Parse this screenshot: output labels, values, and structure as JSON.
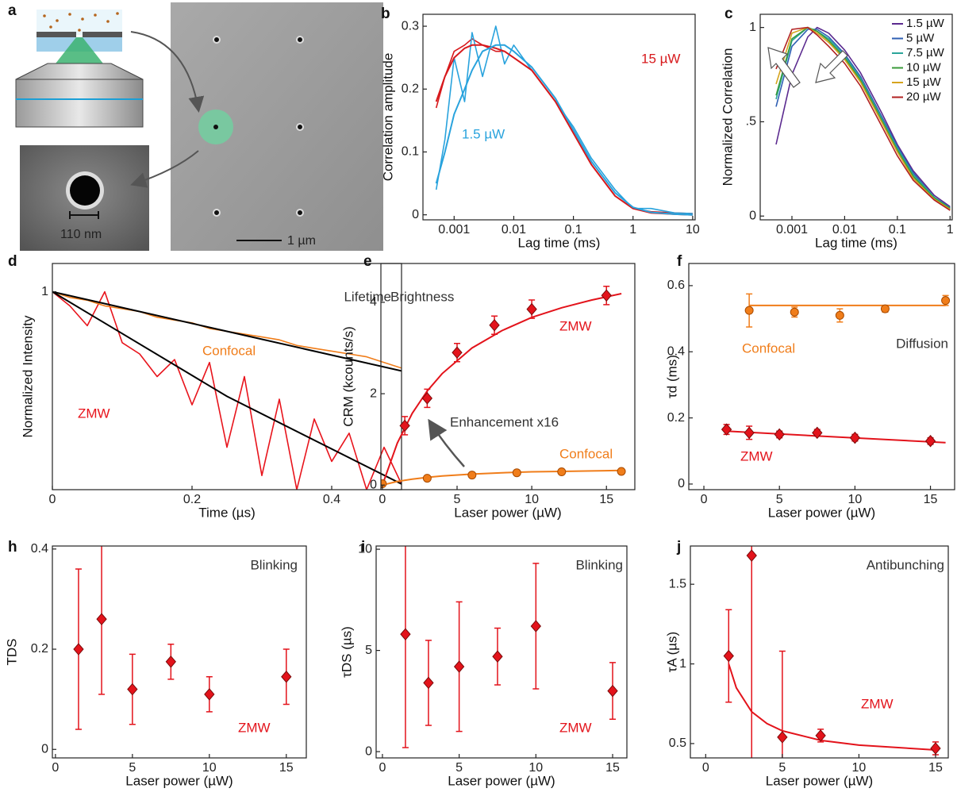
{
  "panel_a": {
    "label": "a",
    "inset_scale": "110 nm",
    "scale_bar": "1 µm"
  },
  "chart_data": [
    {
      "type": "line",
      "label": "b",
      "xlabel": "Lag time (ms)",
      "ylabel": "Correlation amplitude",
      "xlog": true,
      "xlim": [
        0.0003,
        11
      ],
      "xticks": [
        0.001,
        0.01,
        0.1,
        1,
        10
      ],
      "ylim": [
        -0.008,
        0.319
      ],
      "yticks": [
        0,
        0.1,
        0.2,
        0.3
      ],
      "x": [
        0.0005,
        0.0007,
        0.001,
        0.0015,
        0.002,
        0.003,
        0.005,
        0.007,
        0.01,
        0.02,
        0.05,
        0.1,
        0.2,
        0.5,
        1,
        2,
        5,
        10
      ],
      "series": [
        {
          "name": "15 µW",
          "color": "#d7191c",
          "values": [
            0.17,
            0.22,
            0.26,
            0.27,
            0.28,
            0.27,
            0.26,
            0.26,
            0.25,
            0.23,
            0.18,
            0.13,
            0.08,
            0.03,
            0.01,
            0.005,
            0.003,
            0.002
          ],
          "fit": [
            0.18,
            0.22,
            0.25,
            0.265,
            0.27,
            0.27,
            0.265,
            0.26,
            0.25,
            0.23,
            0.18,
            0.13,
            0.08,
            0.03,
            0.01,
            0.003,
            0.001,
            0
          ]
        },
        {
          "name": "1.5 µW",
          "color": "#29a3dd",
          "values": [
            0.04,
            0.12,
            0.25,
            0.18,
            0.29,
            0.22,
            0.3,
            0.24,
            0.27,
            0.23,
            0.18,
            0.14,
            0.09,
            0.04,
            0.01,
            0.01,
            0.003,
            0.002
          ],
          "fit": [
            0.05,
            0.1,
            0.16,
            0.2,
            0.23,
            0.26,
            0.27,
            0.27,
            0.26,
            0.235,
            0.185,
            0.135,
            0.085,
            0.035,
            0.012,
            0.004,
            0.001,
            0
          ]
        }
      ]
    },
    {
      "type": "line",
      "label": "c",
      "xlabel": "Lag time (ms)",
      "ylabel": "Normalized Correlation",
      "xlog": true,
      "legend": "upper right",
      "xlim": [
        0.00025,
        1.1
      ],
      "xticks": [
        0.001,
        0.01,
        0.1,
        1
      ],
      "ylim": [
        -0.02,
        1.07
      ],
      "yticks": [
        0,
        {
          "value": 0.5,
          "label": ".5"
        },
        1
      ],
      "x": [
        0.0005,
        0.001,
        0.002,
        0.003,
        0.005,
        0.01,
        0.02,
        0.05,
        0.1,
        0.2,
        0.5,
        1
      ],
      "series": [
        {
          "name": "1.5 µW",
          "color": "#5b2a8f",
          "values": [
            0.38,
            0.75,
            0.95,
            1.0,
            0.97,
            0.88,
            0.76,
            0.55,
            0.38,
            0.24,
            0.11,
            0.05
          ]
        },
        {
          "name": "5 µW",
          "color": "#2f5fb3",
          "values": [
            0.58,
            0.9,
            0.99,
            0.99,
            0.95,
            0.86,
            0.74,
            0.53,
            0.37,
            0.23,
            0.1,
            0.045
          ]
        },
        {
          "name": "7.5 µW",
          "color": "#2aa59a",
          "values": [
            0.62,
            0.93,
            1.0,
            0.98,
            0.94,
            0.85,
            0.73,
            0.52,
            0.36,
            0.22,
            0.1,
            0.04
          ]
        },
        {
          "name": "10 µW",
          "color": "#3a9a3a",
          "values": [
            0.64,
            0.94,
            1.0,
            0.98,
            0.93,
            0.84,
            0.72,
            0.51,
            0.35,
            0.21,
            0.095,
            0.04
          ]
        },
        {
          "name": "15 µW",
          "color": "#d6a41e",
          "values": [
            0.7,
            0.97,
            1.0,
            0.97,
            0.92,
            0.83,
            0.71,
            0.5,
            0.34,
            0.2,
            0.09,
            0.035
          ]
        },
        {
          "name": "20 µW",
          "color": "#b22222",
          "values": [
            0.78,
            0.99,
            1.0,
            0.96,
            0.9,
            0.81,
            0.69,
            0.48,
            0.32,
            0.19,
            0.085,
            0.03
          ]
        }
      ]
    },
    {
      "type": "line",
      "label": "d",
      "annotation": "Lifetime",
      "xlabel": "Time (µs)",
      "ylabel": "Normalized Intensity",
      "xlim": [
        0,
        0.5
      ],
      "xticks": [
        0,
        0.2,
        0.4
      ],
      "ylim": [
        0.3,
        1.1
      ],
      "yticks": [
        1
      ],
      "x": [
        0,
        0.025,
        0.05,
        0.075,
        0.1,
        0.125,
        0.15,
        0.175,
        0.2,
        0.225,
        0.25,
        0.275,
        0.3,
        0.325,
        0.35,
        0.375,
        0.4,
        0.425,
        0.45,
        0.475,
        0.5
      ],
      "fit_x": [
        0,
        0.25,
        0.5
      ],
      "series": [
        {
          "name": "ZMW",
          "color": "#e8141c",
          "values": [
            1,
            0.95,
            0.88,
            1.0,
            0.82,
            0.78,
            0.7,
            0.76,
            0.6,
            0.75,
            0.45,
            0.7,
            0.35,
            0.62,
            0.3,
            0.55,
            0.4,
            0.5,
            0.3,
            0.45,
            0.32
          ],
          "fit": [
            1,
            0.63,
            0.32
          ],
          "fit_color": "#000000"
        },
        {
          "name": "Confocal",
          "color": "#f07d1a",
          "values": [
            1,
            0.98,
            0.97,
            0.95,
            0.94,
            0.93,
            0.91,
            0.9,
            0.89,
            0.87,
            0.86,
            0.85,
            0.84,
            0.83,
            0.81,
            0.8,
            0.79,
            0.78,
            0.77,
            0.75,
            0.73
          ],
          "fit": [
            1,
            0.86,
            0.72
          ],
          "fit_color": "#000000"
        }
      ]
    },
    {
      "type": "scatter",
      "label": "e",
      "annotation": "Brightness",
      "note": "Enhancement x16",
      "xlabel": "Laser power (µW)",
      "ylabel": "CRM (kcounts/s)",
      "xlim": [
        -0.1,
        16.9
      ],
      "xticks": [
        0,
        5,
        10,
        15
      ],
      "ylim": [
        -0.1,
        4.85
      ],
      "yticks": [
        0,
        2,
        4
      ],
      "series": [
        {
          "name": "ZMW",
          "color": "#e3131b",
          "marker": "diamond",
          "x": [
            1.5,
            3,
            5,
            7.5,
            10,
            15
          ],
          "values": [
            1.3,
            1.9,
            2.9,
            3.5,
            3.85,
            4.15
          ],
          "errors": [
            0.2,
            0.2,
            0.2,
            0.2,
            0.2,
            0.2
          ],
          "fit_x": [
            0,
            1,
            2,
            3,
            4,
            6,
            8,
            10,
            12,
            14,
            16
          ],
          "fit": [
            0,
            0.92,
            1.57,
            2.06,
            2.44,
            3.0,
            3.38,
            3.67,
            3.88,
            4.05,
            4.19
          ]
        },
        {
          "name": "Confocal",
          "color": "#f07d1a",
          "marker": "circle",
          "x": [
            0,
            3,
            6,
            9,
            12,
            16
          ],
          "values": [
            0.03,
            0.15,
            0.22,
            0.27,
            0.29,
            0.3
          ],
          "fit_x": [
            0,
            1,
            2,
            3,
            4,
            6,
            8,
            10,
            12,
            14,
            16
          ],
          "fit": [
            0,
            0.08,
            0.13,
            0.17,
            0.2,
            0.24,
            0.27,
            0.29,
            0.3,
            0.31,
            0.32
          ]
        }
      ]
    },
    {
      "type": "scatter",
      "label": "f",
      "annotation": "Diffusion",
      "xlabel": "Laser power (µW)",
      "ylabel": "τd (ms)",
      "xlim": [
        -1,
        16.6
      ],
      "xticks": [
        0,
        5,
        10,
        15
      ],
      "ylim": [
        -0.017,
        0.667
      ],
      "yticks": [
        0,
        0.2,
        0.4,
        0.6
      ],
      "series": [
        {
          "name": "Confocal",
          "color": "#f07d1a",
          "marker": "circle",
          "x": [
            3,
            6,
            9,
            12,
            16
          ],
          "values": [
            0.525,
            0.52,
            0.51,
            0.53,
            0.555
          ],
          "errors": [
            0.05,
            0.015,
            0.02,
            0.01,
            0.015
          ],
          "fit_x": [
            3,
            16
          ],
          "fit": [
            0.54,
            0.54
          ]
        },
        {
          "name": "ZMW",
          "color": "#e3131b",
          "marker": "diamond",
          "x": [
            1.5,
            3,
            5,
            7.5,
            10,
            15
          ],
          "values": [
            0.165,
            0.155,
            0.15,
            0.155,
            0.14,
            0.13
          ],
          "errors": [
            0.015,
            0.02,
            0.01,
            0.01,
            0.01,
            0.01
          ],
          "fit_x": [
            1.5,
            16
          ],
          "fit": [
            0.16,
            0.125
          ]
        }
      ]
    },
    {
      "type": "scatter",
      "label": "h",
      "annotation": "Blinking",
      "xlabel": "Laser power (µW)",
      "ylabel": "TDS",
      "xlim": [
        -0.2,
        16.3
      ],
      "xticks": [
        0,
        5,
        10,
        15
      ],
      "ylim": [
        -0.017,
        0.406
      ],
      "yticks": [
        0,
        0.2,
        0.4
      ],
      "series": [
        {
          "name": "ZMW",
          "color": "#e3131b",
          "marker": "diamond",
          "x": [
            1.5,
            3,
            5,
            7.5,
            10,
            15
          ],
          "values": [
            0.2,
            0.26,
            0.12,
            0.175,
            0.11,
            0.145
          ],
          "errors": [
            0.16,
            0.15,
            0.07,
            0.035,
            0.035,
            0.055
          ]
        }
      ]
    },
    {
      "type": "scatter",
      "label": "i",
      "annotation": "Blinking",
      "xlabel": "Laser power (µW)",
      "ylabel": "τDS (µs)",
      "xlim": [
        -0.41,
        15.93
      ],
      "xticks": [
        0,
        5,
        10,
        15
      ],
      "ylim": [
        -0.31,
        10.16
      ],
      "yticks": [
        0,
        5,
        10
      ],
      "series": [
        {
          "name": "ZMW",
          "color": "#e3131b",
          "marker": "diamond",
          "x": [
            1.5,
            3,
            5,
            7.5,
            10,
            15
          ],
          "values": [
            5.8,
            3.4,
            4.2,
            4.7,
            6.2,
            3.0
          ],
          "errors": [
            5.6,
            2.1,
            3.2,
            1.4,
            3.1,
            1.4
          ]
        }
      ]
    },
    {
      "type": "scatter",
      "label": "j",
      "annotation": "Antibunching",
      "xlabel": "Laser power (µW)",
      "ylabel": "τA (µs)",
      "xlim": [
        -1,
        15.83
      ],
      "xticks": [
        0,
        5,
        10,
        15
      ],
      "ylim": [
        0.41,
        1.74
      ],
      "yticks": [
        0.5,
        1,
        1.5
      ],
      "series": [
        {
          "name": "ZMW",
          "color": "#e3131b",
          "marker": "diamond",
          "x": [
            1.5,
            3,
            5,
            7.5,
            15
          ],
          "values": [
            1.05,
            1.68,
            0.54,
            0.55,
            0.47
          ],
          "errors": [
            0.29,
            1.45,
            0.54,
            0.04,
            0.04
          ],
          "fit_x": [
            1.5,
            2,
            3,
            4,
            5,
            7.5,
            10,
            15
          ],
          "fit": [
            1.0,
            0.85,
            0.7,
            0.625,
            0.58,
            0.52,
            0.49,
            0.46
          ]
        }
      ]
    }
  ]
}
